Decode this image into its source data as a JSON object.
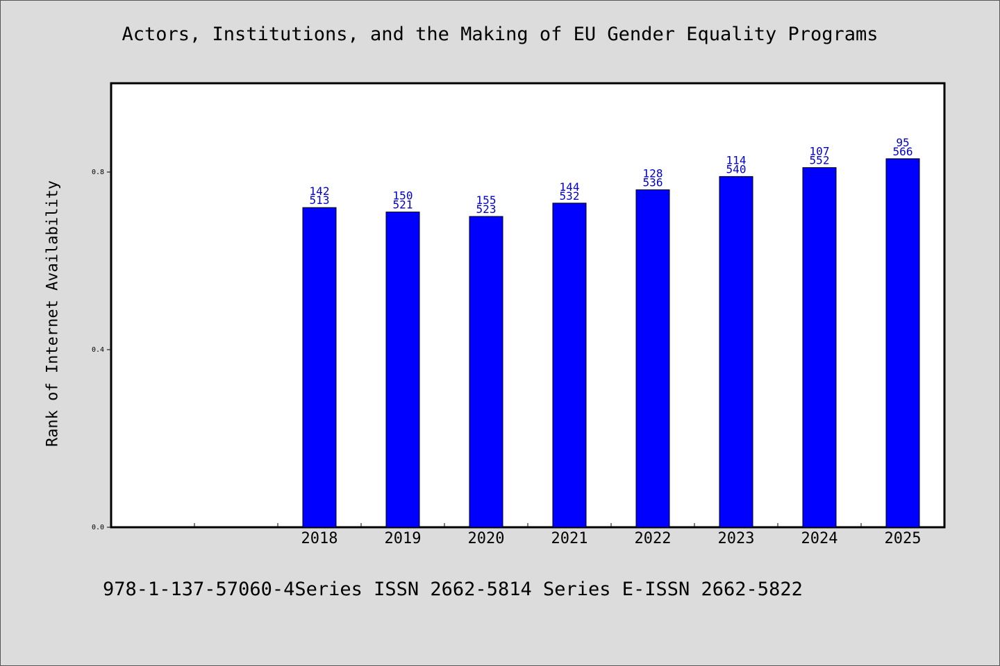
{
  "chart_data": {
    "type": "bar",
    "title": "Actors, Institutions, and the Making of EU Gender Equality Programs",
    "xlabel": "",
    "ylabel": "Rank of Internet Availability",
    "categories": [
      "2018",
      "2019",
      "2020",
      "2021",
      "2022",
      "2023",
      "2024",
      "2025"
    ],
    "values": [
      0.72,
      0.71,
      0.7,
      0.73,
      0.76,
      0.79,
      0.81,
      0.83
    ],
    "bar_labels_top": [
      "142",
      "150",
      "155",
      "144",
      "128",
      "114",
      "107",
      "95"
    ],
    "bar_labels_bottom": [
      "513",
      "521",
      "523",
      "532",
      "536",
      "540",
      "552",
      "566"
    ],
    "ylim": [
      0,
      1.0
    ],
    "yticks": [
      "0.0",
      "0.4",
      "0.8"
    ],
    "ytick_values": [
      0.0,
      0.4,
      0.8
    ],
    "leading_empty_slots": 2,
    "grid": false,
    "legend": "none",
    "colors": {
      "bar": "#0000ff",
      "bar_edge": "#000000",
      "label": "#0000cc",
      "background": "#dcdcdc",
      "plot_bg": "#ffffff"
    }
  },
  "footer": "978-1-137-57060-4Series ISSN 2662-5814 Series E-ISSN 2662-5822"
}
